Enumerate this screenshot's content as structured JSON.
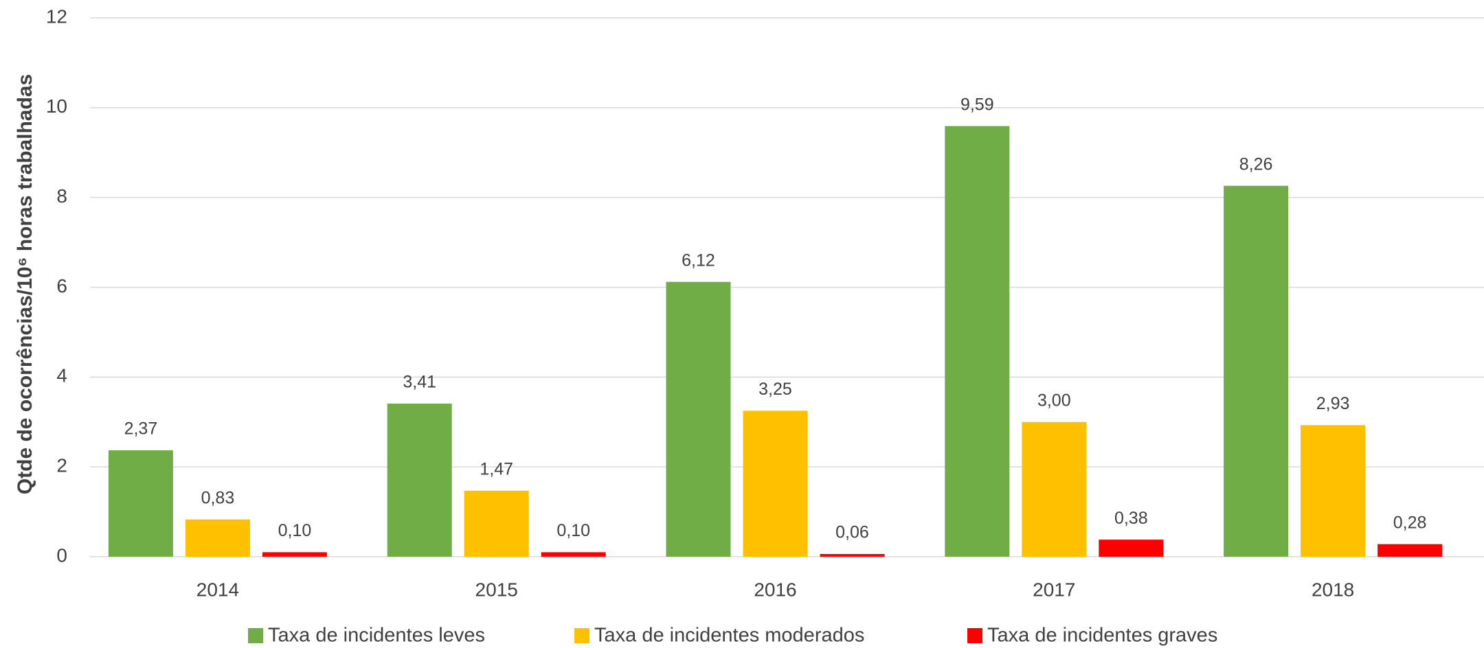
{
  "chart_data": {
    "type": "bar",
    "y_label": "Qtde de ocorrências/10⁶ horas trabalhadas",
    "categories": [
      "2014",
      "2015",
      "2016",
      "2017",
      "2018"
    ],
    "series": [
      {
        "name": "Taxa de incidentes leves",
        "color": "#70ad47",
        "values": [
          2.37,
          3.41,
          6.12,
          9.59,
          8.26
        ],
        "value_labels": [
          "2,37",
          "3,41",
          "6,12",
          "9,59",
          "8,26"
        ]
      },
      {
        "name": "Taxa de incidentes moderados",
        "color": "#ffc000",
        "values": [
          0.83,
          1.47,
          3.25,
          3.0,
          2.93
        ],
        "value_labels": [
          "0,83",
          "1,47",
          "3,25",
          "3,00",
          "2,93"
        ]
      },
      {
        "name": "Taxa de incidentes graves",
        "color": "#ff0000",
        "values": [
          0.1,
          0.1,
          0.06,
          0.38,
          0.28
        ],
        "value_labels": [
          "0,10",
          "0,10",
          "0,06",
          "0,38",
          "0,28"
        ]
      }
    ],
    "ylim": [
      0,
      12
    ],
    "yticks": [
      0,
      2,
      4,
      6,
      8,
      10,
      12
    ],
    "grid": true
  }
}
